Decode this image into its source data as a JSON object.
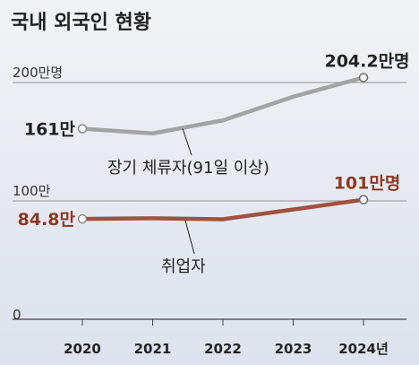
{
  "chart_data": {
    "type": "line",
    "title": "국내 외국인 현황",
    "y_ticks": [
      {
        "value": 200,
        "label": "200만명"
      },
      {
        "value": 100,
        "label": "100만"
      },
      {
        "value": 0,
        "label": "0"
      }
    ],
    "ylim": [
      0,
      230
    ],
    "x": [
      2020,
      2021,
      2022,
      2023,
      2024
    ],
    "x_tick_labels": [
      "2020",
      "2021",
      "2022",
      "2023",
      "2024년"
    ],
    "series": [
      {
        "name": "장기 체류자(91일 이상)",
        "color": "#a3a3a3",
        "values": [
          161,
          157,
          168,
          188,
          204.2
        ],
        "start_label": "161만",
        "end_label": "204.2만명",
        "label_color": "#222222"
      },
      {
        "name": "취업자",
        "color": "#a0523d",
        "values": [
          84.8,
          85.3,
          84.5,
          92.7,
          101
        ],
        "start_label": "84.8만",
        "end_label": "101만명",
        "label_color": "#8a3a22"
      }
    ]
  }
}
